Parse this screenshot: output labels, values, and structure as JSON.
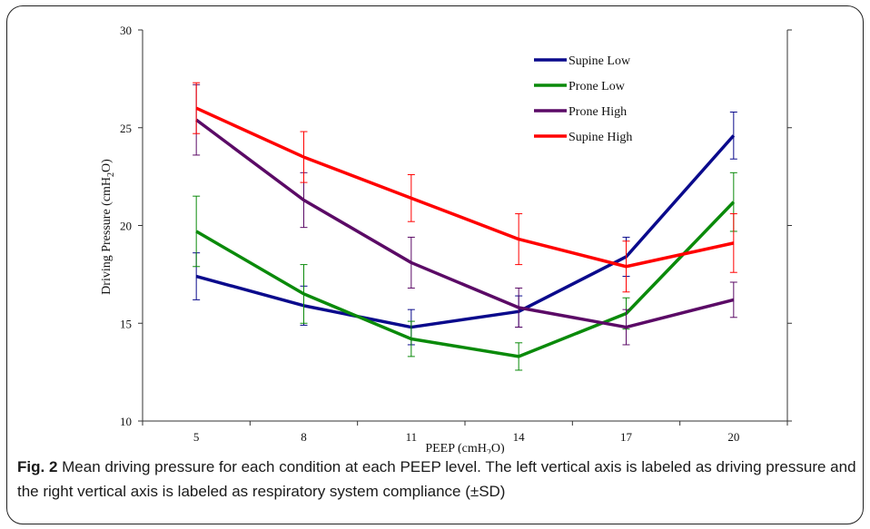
{
  "chart_data": {
    "type": "line",
    "x": [
      5,
      8,
      11,
      14,
      17,
      20
    ],
    "xlabel": "PEEP (cmH2O)",
    "ylabel": "Driving Pressure (cmH2O)",
    "ylim": [
      10,
      30
    ],
    "yticks": [
      10,
      15,
      20,
      25,
      30
    ],
    "grid": false,
    "legend_position": "top-right",
    "series": [
      {
        "name": "Supine Low",
        "color": "#0a0a8c",
        "values": [
          17.4,
          15.9,
          14.8,
          15.6,
          18.4,
          24.6
        ],
        "error": [
          1.2,
          1.0,
          0.9,
          0.8,
          1.0,
          1.2
        ]
      },
      {
        "name": "Prone Low",
        "color": "#0a8a0a",
        "values": [
          19.7,
          16.5,
          14.2,
          13.3,
          15.5,
          21.2
        ],
        "error": [
          1.8,
          1.5,
          0.9,
          0.7,
          0.8,
          1.5
        ]
      },
      {
        "name": "Prone High",
        "color": "#5b0a66",
        "values": [
          25.4,
          21.3,
          18.1,
          15.8,
          14.8,
          16.2
        ],
        "error": [
          1.8,
          1.4,
          1.3,
          1.0,
          0.9,
          0.9
        ]
      },
      {
        "name": "Supine High",
        "color": "#ff0000",
        "values": [
          26.0,
          23.5,
          21.4,
          19.3,
          17.9,
          19.1
        ],
        "error": [
          1.3,
          1.3,
          1.2,
          1.3,
          1.3,
          1.5
        ]
      }
    ]
  },
  "caption": {
    "label": "Fig. 2",
    "text": " Mean driving pressure for each condition at each PEEP level. The left vertical axis is labeled as driving pressure and the right vertical axis is labeled as respiratory system compliance (±SD)"
  }
}
